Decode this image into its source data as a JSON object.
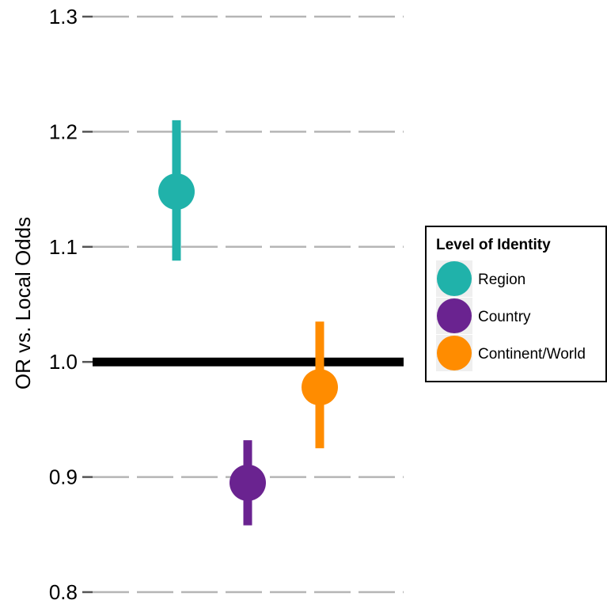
{
  "chart_data": {
    "type": "scatter",
    "subtype": "point-range",
    "ylabel": "OR vs. Local Odds",
    "xlabel": "",
    "ylim": [
      0.8,
      1.3
    ],
    "yticks": [
      0.8,
      0.9,
      1.0,
      1.1,
      1.2,
      1.3
    ],
    "ytick_labels": [
      "0.8",
      "0.9",
      "1.0",
      "1.1",
      "1.2",
      "1.3"
    ],
    "grid": "horizontal, dashed, grey",
    "reference_line": {
      "y": 1.0,
      "color": "#000000"
    },
    "legend": {
      "title": "Level of Identity",
      "placement": "right"
    },
    "series": [
      {
        "name": "Region",
        "estimate": 1.148,
        "lower": 1.088,
        "upper": 1.21,
        "color": "#20B2AA"
      },
      {
        "name": "Country",
        "estimate": 0.895,
        "lower": 0.858,
        "upper": 0.932,
        "color": "#6A2390"
      },
      {
        "name": "Continent/World",
        "estimate": 0.978,
        "lower": 0.925,
        "upper": 1.035,
        "color": "#FF8C00"
      }
    ]
  }
}
